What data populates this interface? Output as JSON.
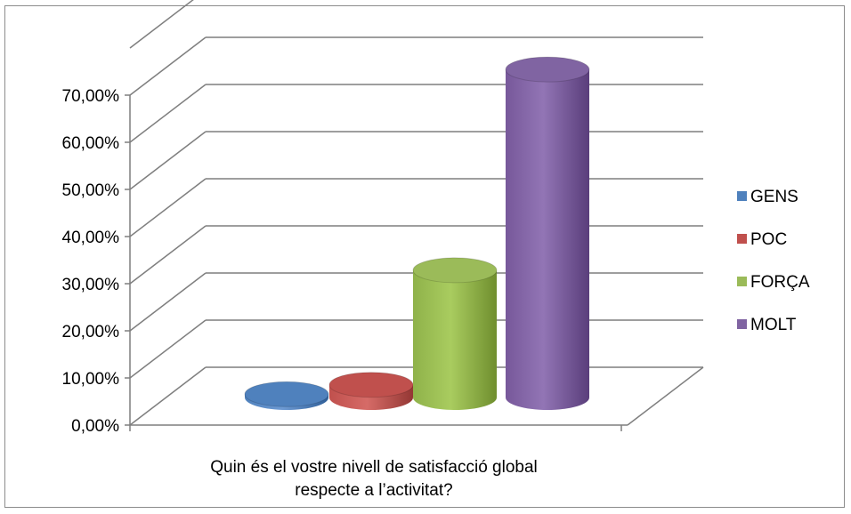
{
  "chart_data": {
    "type": "bar",
    "style": "3d-cylinder",
    "xlabel_lines": [
      "Quin és el vostre nivell de satisfacció global",
      "respecte a l’activitat?"
    ],
    "yticks": [
      "0,00%",
      "10,00%",
      "20,00%",
      "30,00%",
      "40,00%",
      "50,00%",
      "60,00%",
      "70,00%"
    ],
    "ylim": [
      0,
      70
    ],
    "grid": true,
    "legend_position": "right",
    "series": [
      {
        "name": "GENS",
        "value": 0.7,
        "color": "#4F81BD"
      },
      {
        "name": "POC",
        "value": 2.7,
        "color": "#C0504D"
      },
      {
        "name": "FORÇA",
        "value": 27.0,
        "color": "#9BBB59"
      },
      {
        "name": "MOLT",
        "value": 69.6,
        "color": "#8064A2"
      }
    ]
  }
}
